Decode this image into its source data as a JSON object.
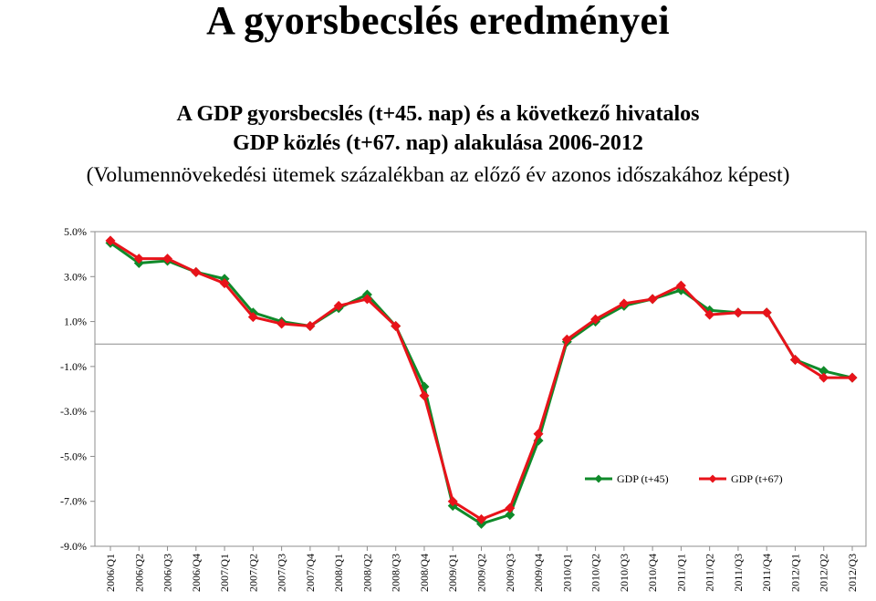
{
  "slide": {
    "title": "A gyorsbecslés eredményei",
    "subtitle_line1": "A GDP gyorsbecslés (t+45. nap) és a következő hivatalos",
    "subtitle_line2": "GDP közlés (t+67. nap) alakulása 2006-2012",
    "subtitle_line3": "(Volumennövekedési ütemek százalékban az előző év azonos időszakához képest)"
  },
  "chart_data": {
    "type": "line",
    "title": "",
    "xlabel": "",
    "ylabel": "",
    "ylim": [
      -9.0,
      5.0
    ],
    "yticks": [
      "5.0%",
      "3.0%",
      "1.0%",
      "-1.0%",
      "-3.0%",
      "-5.0%",
      "-7.0%",
      "-9.0%"
    ],
    "ytick_values": [
      5,
      3,
      1,
      -1,
      -3,
      -5,
      -7,
      -9
    ],
    "grid": false,
    "legend_position": "bottom-right",
    "categories": [
      "2006/Q1",
      "2006/Q2",
      "2006/Q3",
      "2006/Q4",
      "2007/Q1",
      "2007/Q2",
      "2007/Q3",
      "2007/Q4",
      "2008/Q1",
      "2008/Q2",
      "2008/Q3",
      "2008/Q4",
      "2009/Q1",
      "2009/Q2",
      "2009/Q3",
      "2009/Q4",
      "2010/Q1",
      "2010/Q2",
      "2010/Q3",
      "2010/Q4",
      "2011/Q1",
      "2011/Q2",
      "2011/Q3",
      "2011/Q4",
      "2012/Q1",
      "2012/Q2",
      "2012/Q3"
    ],
    "series": [
      {
        "name": "GDP (t+45)",
        "color": "#0f8a2a",
        "marker": "diamond",
        "values": [
          4.5,
          3.6,
          3.7,
          3.2,
          2.9,
          1.4,
          1.0,
          0.8,
          1.6,
          2.2,
          0.8,
          -1.9,
          -7.2,
          -8.0,
          -7.6,
          -4.3,
          0.1,
          1.0,
          1.7,
          2.0,
          2.4,
          1.5,
          1.4,
          1.4,
          -0.7,
          -1.2,
          -1.5
        ]
      },
      {
        "name": "GDP (t+67)",
        "color": "#e8131a",
        "marker": "diamond",
        "values": [
          4.6,
          3.8,
          3.8,
          3.2,
          2.7,
          1.2,
          0.9,
          0.8,
          1.7,
          2.0,
          0.8,
          -2.3,
          -7.0,
          -7.8,
          -7.3,
          -4.0,
          0.2,
          1.1,
          1.8,
          2.0,
          2.6,
          1.3,
          1.4,
          1.4,
          -0.7,
          -1.5,
          -1.5
        ]
      }
    ]
  }
}
